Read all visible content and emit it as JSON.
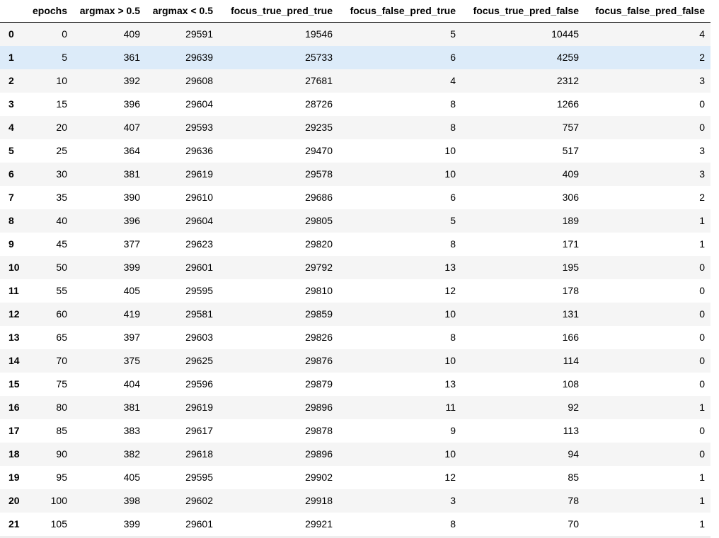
{
  "table": {
    "columns": [
      "epochs",
      "argmax > 0.5",
      "argmax < 0.5",
      "focus_true_pred_true",
      "focus_false_pred_true",
      "focus_true_pred_false",
      "focus_false_pred_false"
    ],
    "highlighted_row": 1,
    "rows": [
      {
        "index": "0",
        "cells": [
          "0",
          "409",
          "29591",
          "19546",
          "5",
          "10445",
          "4"
        ]
      },
      {
        "index": "1",
        "cells": [
          "5",
          "361",
          "29639",
          "25733",
          "6",
          "4259",
          "2"
        ]
      },
      {
        "index": "2",
        "cells": [
          "10",
          "392",
          "29608",
          "27681",
          "4",
          "2312",
          "3"
        ]
      },
      {
        "index": "3",
        "cells": [
          "15",
          "396",
          "29604",
          "28726",
          "8",
          "1266",
          "0"
        ]
      },
      {
        "index": "4",
        "cells": [
          "20",
          "407",
          "29593",
          "29235",
          "8",
          "757",
          "0"
        ]
      },
      {
        "index": "5",
        "cells": [
          "25",
          "364",
          "29636",
          "29470",
          "10",
          "517",
          "3"
        ]
      },
      {
        "index": "6",
        "cells": [
          "30",
          "381",
          "29619",
          "29578",
          "10",
          "409",
          "3"
        ]
      },
      {
        "index": "7",
        "cells": [
          "35",
          "390",
          "29610",
          "29686",
          "6",
          "306",
          "2"
        ]
      },
      {
        "index": "8",
        "cells": [
          "40",
          "396",
          "29604",
          "29805",
          "5",
          "189",
          "1"
        ]
      },
      {
        "index": "9",
        "cells": [
          "45",
          "377",
          "29623",
          "29820",
          "8",
          "171",
          "1"
        ]
      },
      {
        "index": "10",
        "cells": [
          "50",
          "399",
          "29601",
          "29792",
          "13",
          "195",
          "0"
        ]
      },
      {
        "index": "11",
        "cells": [
          "55",
          "405",
          "29595",
          "29810",
          "12",
          "178",
          "0"
        ]
      },
      {
        "index": "12",
        "cells": [
          "60",
          "419",
          "29581",
          "29859",
          "10",
          "131",
          "0"
        ]
      },
      {
        "index": "13",
        "cells": [
          "65",
          "397",
          "29603",
          "29826",
          "8",
          "166",
          "0"
        ]
      },
      {
        "index": "14",
        "cells": [
          "70",
          "375",
          "29625",
          "29876",
          "10",
          "114",
          "0"
        ]
      },
      {
        "index": "15",
        "cells": [
          "75",
          "404",
          "29596",
          "29879",
          "13",
          "108",
          "0"
        ]
      },
      {
        "index": "16",
        "cells": [
          "80",
          "381",
          "29619",
          "29896",
          "11",
          "92",
          "1"
        ]
      },
      {
        "index": "17",
        "cells": [
          "85",
          "383",
          "29617",
          "29878",
          "9",
          "113",
          "0"
        ]
      },
      {
        "index": "18",
        "cells": [
          "90",
          "382",
          "29618",
          "29896",
          "10",
          "94",
          "0"
        ]
      },
      {
        "index": "19",
        "cells": [
          "95",
          "405",
          "29595",
          "29902",
          "12",
          "85",
          "1"
        ]
      },
      {
        "index": "20",
        "cells": [
          "100",
          "398",
          "29602",
          "29918",
          "3",
          "78",
          "1"
        ]
      },
      {
        "index": "21",
        "cells": [
          "105",
          "399",
          "29601",
          "29921",
          "8",
          "70",
          "1"
        ]
      }
    ]
  },
  "colors": {
    "stripe": "#f5f5f5",
    "hover": "#dcebf9",
    "header_rule": "#000000"
  }
}
